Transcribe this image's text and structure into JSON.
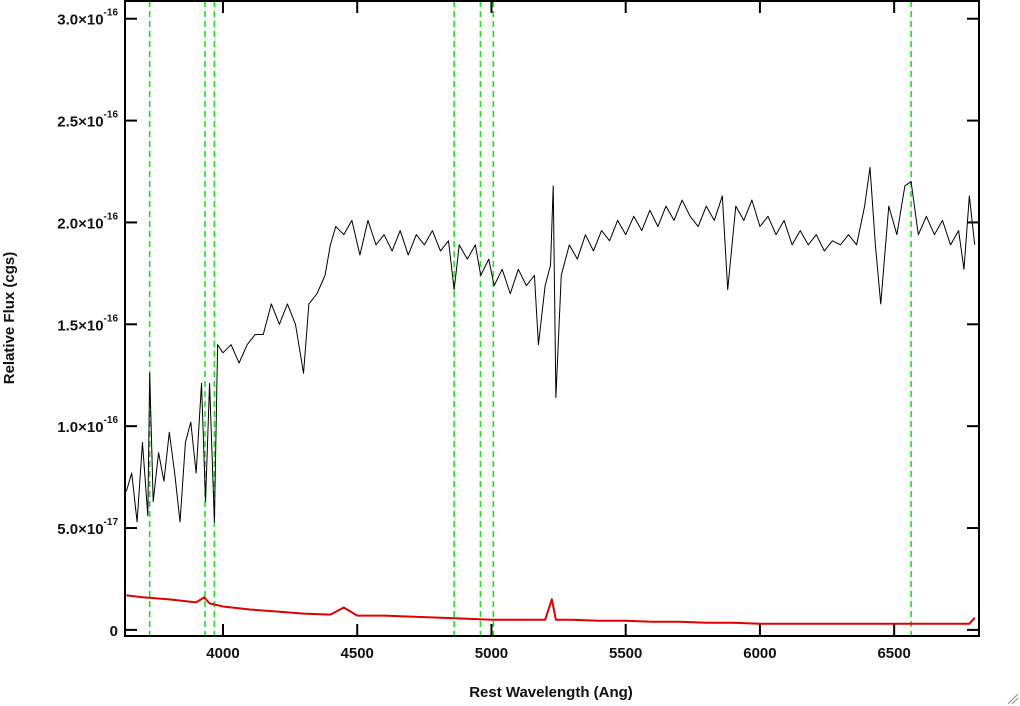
{
  "chart_data": {
    "type": "line",
    "xlabel": "Rest Wavelength (Ang)",
    "ylabel": "Relative Flux (cgs)",
    "xlim": [
      3635,
      6816
    ],
    "ylim": [
      -3e-18,
      3.087e-16
    ],
    "xticks": [
      4000,
      4500,
      5000,
      5500,
      6000,
      6500
    ],
    "yticks": [
      0,
      {
        "value": 5e-17,
        "label": "5.0×10",
        "exponent": "-17"
      },
      {
        "value": 1e-16,
        "label": "1.0×10",
        "exponent": "-16"
      },
      {
        "value": 1.5e-16,
        "label": "1.5×10",
        "exponent": "-16"
      },
      {
        "value": 2e-16,
        "label": "2.0×10",
        "exponent": "-16"
      },
      {
        "value": 2.5e-16,
        "label": "2.5×10",
        "exponent": "-16"
      },
      {
        "value": 3e-16,
        "label": "3.0×10",
        "exponent": "-16"
      }
    ],
    "reference_lines": {
      "color": "#22dd22",
      "x": [
        3727,
        3933,
        3968,
        4861,
        4959,
        5007,
        6563
      ]
    },
    "series": [
      {
        "color": "#000000",
        "width": 1,
        "x": [
          3640,
          3660,
          3680,
          3700,
          3720,
          3727,
          3740,
          3760,
          3780,
          3800,
          3820,
          3840,
          3860,
          3880,
          3900,
          3920,
          3935,
          3950,
          3968,
          3980,
          4000,
          4030,
          4060,
          4090,
          4120,
          4150,
          4180,
          4210,
          4240,
          4270,
          4300,
          4320,
          4350,
          4380,
          4400,
          4420,
          4450,
          4480,
          4510,
          4540,
          4570,
          4600,
          4630,
          4660,
          4690,
          4720,
          4750,
          4780,
          4810,
          4840,
          4861,
          4880,
          4910,
          4940,
          4960,
          4990,
          5010,
          5040,
          5070,
          5100,
          5130,
          5160,
          5175,
          5200,
          5220,
          5230,
          5240,
          5260,
          5290,
          5320,
          5350,
          5380,
          5410,
          5440,
          5470,
          5500,
          5530,
          5560,
          5590,
          5620,
          5650,
          5680,
          5710,
          5740,
          5770,
          5800,
          5830,
          5860,
          5880,
          5910,
          5940,
          5970,
          6000,
          6030,
          6060,
          6090,
          6120,
          6150,
          6180,
          6210,
          6240,
          6270,
          6300,
          6330,
          6360,
          6390,
          6410,
          6430,
          6450,
          6480,
          6510,
          6540,
          6563,
          6590,
          6620,
          6650,
          6680,
          6710,
          6740,
          6760,
          6780,
          6800
        ],
        "values": [
          6.8e-17,
          7.7e-17,
          5.3e-17,
          9.2e-17,
          5.6e-17,
          1.26e-16,
          6.3e-17,
          8.7e-17,
          7.3e-17,
          9.7e-17,
          7.7e-17,
          5.3e-17,
          9.2e-17,
          1.02e-16,
          7.7e-17,
          1.21e-16,
          6.3e-17,
          1.21e-16,
          5.3e-17,
          1.4e-16,
          1.36e-16,
          1.4e-16,
          1.31e-16,
          1.4e-16,
          1.45e-16,
          1.45e-16,
          1.6e-16,
          1.5e-16,
          1.6e-16,
          1.5e-16,
          1.26e-16,
          1.6e-16,
          1.65e-16,
          1.74e-16,
          1.89e-16,
          1.98e-16,
          1.94e-16,
          2.01e-16,
          1.84e-16,
          2.01e-16,
          1.89e-16,
          1.94e-16,
          1.86e-16,
          1.96e-16,
          1.84e-16,
          1.94e-16,
          1.89e-16,
          1.96e-16,
          1.86e-16,
          1.91e-16,
          1.67e-16,
          1.89e-16,
          1.82e-16,
          1.89e-16,
          1.74e-16,
          1.82e-16,
          1.69e-16,
          1.77e-16,
          1.65e-16,
          1.77e-16,
          1.69e-16,
          1.74e-16,
          1.4e-16,
          1.69e-16,
          1.79e-16,
          2.18e-16,
          1.14e-16,
          1.74e-16,
          1.89e-16,
          1.82e-16,
          1.94e-16,
          1.86e-16,
          1.96e-16,
          1.91e-16,
          2.01e-16,
          1.94e-16,
          2.03e-16,
          1.96e-16,
          2.06e-16,
          1.98e-16,
          2.08e-16,
          2.01e-16,
          2.11e-16,
          2.03e-16,
          1.98e-16,
          2.08e-16,
          2.01e-16,
          2.13e-16,
          1.67e-16,
          2.08e-16,
          2.01e-16,
          2.11e-16,
          1.98e-16,
          2.03e-16,
          1.94e-16,
          2.01e-16,
          1.89e-16,
          1.96e-16,
          1.89e-16,
          1.94e-16,
          1.86e-16,
          1.91e-16,
          1.89e-16,
          1.94e-16,
          1.89e-16,
          2.08e-16,
          2.27e-16,
          1.89e-16,
          1.6e-16,
          2.08e-16,
          1.94e-16,
          2.18e-16,
          2.2e-16,
          1.94e-16,
          2.03e-16,
          1.94e-16,
          2.01e-16,
          1.89e-16,
          1.96e-16,
          1.77e-16,
          2.13e-16,
          1.89e-16
        ]
      },
      {
        "color": "#dd0000",
        "width": 2,
        "x": [
          3640,
          3700,
          3800,
          3900,
          3930,
          3950,
          4000,
          4100,
          4200,
          4300,
          4400,
          4450,
          4500,
          4600,
          4700,
          4800,
          4900,
          5000,
          5100,
          5200,
          5225,
          5240,
          5300,
          5400,
          5500,
          5600,
          5700,
          5800,
          5900,
          6000,
          6200,
          6400,
          6600,
          6780,
          6800
        ],
        "values": [
          1.7e-17,
          1.6e-17,
          1.5e-17,
          1.35e-17,
          1.6e-17,
          1.3e-17,
          1.15e-17,
          1e-17,
          9e-18,
          8e-18,
          7.5e-18,
          1.1e-17,
          7e-18,
          7e-18,
          6.5e-18,
          6e-18,
          5.5e-18,
          5e-18,
          5e-18,
          5e-18,
          1.5e-17,
          5e-18,
          5e-18,
          4.5e-18,
          4.5e-18,
          4e-18,
          4e-18,
          3.5e-18,
          3.5e-18,
          3e-18,
          3e-18,
          3e-18,
          3e-18,
          3e-18,
          6e-18
        ]
      }
    ]
  }
}
